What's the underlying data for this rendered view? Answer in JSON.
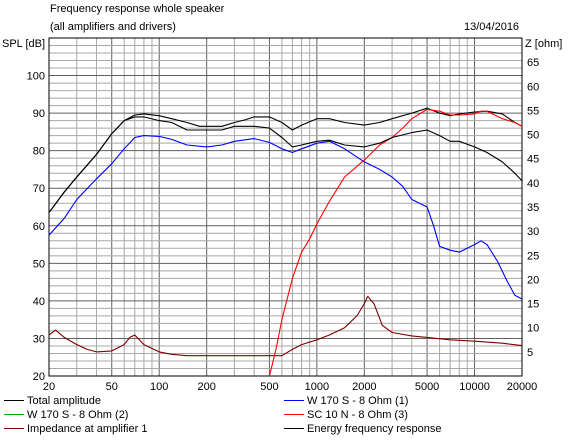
{
  "header": {
    "title": "Frequency response whole speaker",
    "subtitle": "(all amplifiers and drivers)",
    "date": "13/04/2016"
  },
  "chart_data": {
    "type": "line",
    "title": "Frequency response whole speaker",
    "subtitle": "(all amplifiers and drivers)",
    "xscale": "log",
    "xlim": [
      20,
      20000
    ],
    "x_ticks": [
      "20",
      "50",
      "100",
      "200",
      "500",
      "1000",
      "2000",
      "5000",
      "10000",
      "20000"
    ],
    "ylabel_left": "SPL [dB]",
    "ylim_left": [
      20,
      110
    ],
    "y_ticks_left": [
      "20",
      "30",
      "40",
      "50",
      "60",
      "70",
      "80",
      "90",
      "100"
    ],
    "ylabel_right": "Z [ohm]",
    "ylim_right": [
      0,
      70
    ],
    "y_ticks_right": [
      "5",
      "10",
      "15",
      "20",
      "25",
      "30",
      "35",
      "40",
      "45",
      "50",
      "55",
      "60",
      "65"
    ],
    "grid": true,
    "series": [
      {
        "name": "Total amplitude",
        "axis": "left",
        "color": "#000000",
        "x": [
          20,
          25,
          30,
          40,
          50,
          60,
          70,
          80,
          100,
          120,
          150,
          180,
          200,
          250,
          300,
          350,
          400,
          500,
          600,
          700,
          800,
          1000,
          1200,
          1500,
          2000,
          2500,
          3000,
          4000,
          5000,
          6000,
          7000,
          8000,
          10000,
          12000,
          15000,
          18000,
          20000
        ],
        "y": [
          63.5,
          69,
          73,
          79,
          84.5,
          88,
          89.5,
          89.8,
          89.3,
          88.5,
          87.5,
          86.5,
          86.5,
          86.5,
          87.5,
          88.2,
          89,
          89,
          87.5,
          85.5,
          86.8,
          88.5,
          88.5,
          87.5,
          86.8,
          87.5,
          88.5,
          90,
          91.3,
          90,
          89.3,
          89.8,
          90.3,
          90.5,
          89.8,
          87.5,
          86.5
        ]
      },
      {
        "name": "W 170 S - 8 Ohm (2)",
        "axis": "left",
        "color": "#00b000",
        "x": [],
        "y": []
      },
      {
        "name": "Impedance at amplifier 1",
        "axis": "right",
        "color": "#800000",
        "x": [
          20,
          22,
          25,
          30,
          35,
          40,
          50,
          60,
          65,
          70,
          80,
          100,
          120,
          150,
          200,
          300,
          400,
          500,
          600,
          700,
          800,
          1000,
          1200,
          1500,
          1800,
          2000,
          2100,
          2300,
          2600,
          3000,
          4000,
          5000,
          7000,
          10000,
          15000,
          20000
        ],
        "y": [
          8.5,
          9.5,
          8,
          6.5,
          5.5,
          5,
          5.2,
          6.5,
          8,
          8.5,
          6.5,
          5,
          4.5,
          4.2,
          4.2,
          4.2,
          4.2,
          4.2,
          4.2,
          5.5,
          6.5,
          7.5,
          8.5,
          10,
          12.5,
          15,
          16.5,
          15,
          10.5,
          9,
          8.3,
          8,
          7.5,
          7.2,
          6.8,
          6.3
        ]
      },
      {
        "name": "W 170 S - 8 Ohm (1)",
        "axis": "left",
        "color": "#0000ff",
        "x": [
          20,
          25,
          30,
          40,
          50,
          60,
          70,
          80,
          100,
          120,
          150,
          200,
          250,
          300,
          400,
          500,
          600,
          700,
          800,
          1000,
          1200,
          1500,
          2000,
          2500,
          3000,
          3500,
          4000,
          5000,
          5500,
          6000,
          7000,
          8000,
          10000,
          11000,
          12000,
          14000,
          16000,
          18000,
          20000
        ],
        "y": [
          57.5,
          62,
          67,
          72.5,
          76.5,
          80.5,
          83.5,
          84,
          83.8,
          83,
          81.5,
          81,
          81.5,
          82.5,
          83.2,
          82.2,
          80.5,
          79.5,
          80.5,
          82,
          82.5,
          80.5,
          77,
          75,
          73,
          70.5,
          67,
          65,
          60,
          54.5,
          53.5,
          53,
          55,
          56,
          55,
          50.5,
          45.5,
          41.5,
          40.5
        ]
      },
      {
        "name": "SC 10 N - 8 Ohm (3)",
        "axis": "left",
        "color": "#ff0000",
        "x": [
          500,
          550,
          600,
          700,
          800,
          900,
          1000,
          1200,
          1500,
          2000,
          2500,
          3000,
          3500,
          4000,
          5000,
          6000,
          7000,
          8000,
          10000,
          11000,
          12000,
          15000,
          18000,
          20000
        ],
        "y": [
          20,
          27,
          35,
          46,
          53,
          56.5,
          60.5,
          66.5,
          73,
          77.5,
          81.5,
          83.5,
          86,
          88.5,
          91,
          90.5,
          89.5,
          89.5,
          89.8,
          90.5,
          90.5,
          88.5,
          87.5,
          86.5
        ]
      },
      {
        "name": "Energy frequency response",
        "axis": "left",
        "color": "#000000",
        "x": [
          20,
          25,
          30,
          40,
          50,
          60,
          70,
          80,
          100,
          120,
          150,
          200,
          250,
          300,
          400,
          500,
          600,
          700,
          800,
          1000,
          1200,
          1500,
          2000,
          2500,
          3000,
          4000,
          5000,
          6000,
          7000,
          8000,
          10000,
          12000,
          15000,
          18000,
          20000
        ],
        "y": [
          63.5,
          69,
          73,
          79,
          84.5,
          88,
          89,
          89,
          88,
          87.5,
          85.5,
          85.5,
          85.5,
          86.5,
          86.5,
          86,
          83.5,
          81,
          81.5,
          82.5,
          82.8,
          81.5,
          81,
          82,
          83.5,
          84.8,
          85.5,
          84,
          82.5,
          82.5,
          81,
          79.5,
          77,
          74,
          72
        ]
      }
    ]
  }
}
